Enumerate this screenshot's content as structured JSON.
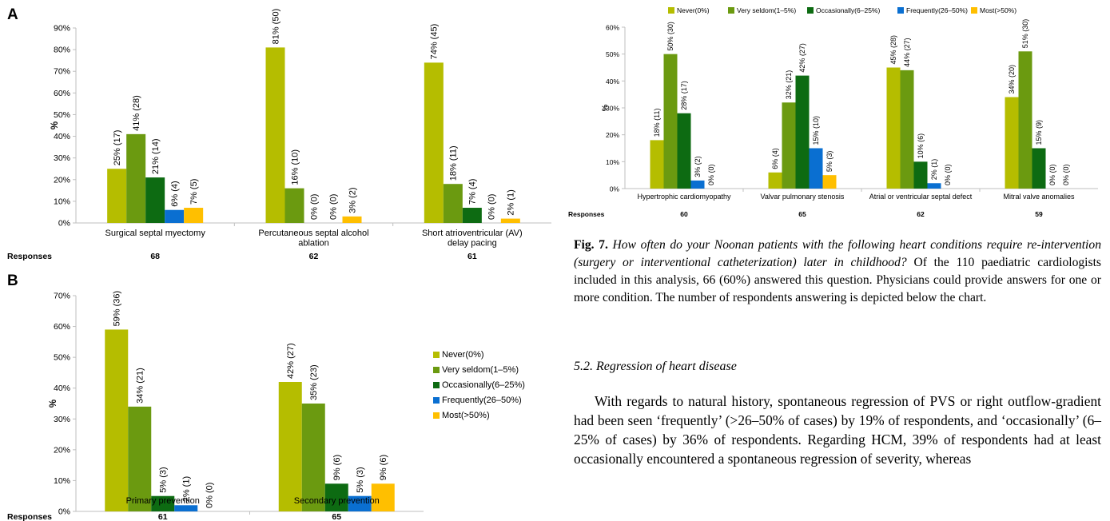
{
  "colors": {
    "never": "#b5bd00",
    "very_seldom": "#6b9a10",
    "occasionally": "#0d6b12",
    "frequently": "#0a6fd1",
    "most": "#ffbf00",
    "axis": "#bfbfbf",
    "text": "#000000"
  },
  "chart_data": [
    {
      "panel": "A",
      "type": "bar",
      "ylabel": "%",
      "ylim": [
        0,
        90
      ],
      "yticks": [
        "0%",
        "10%",
        "20%",
        "30%",
        "40%",
        "50%",
        "60%",
        "70%",
        "80%",
        "90%"
      ],
      "categories": [
        "Surgical septal myectomy",
        "Percutaneous septal alcohol ablation",
        "Short atrioventricular (AV) delay pacing"
      ],
      "responses_label": "Responses",
      "responses": [
        "68",
        "62",
        "61"
      ],
      "series": [
        {
          "name": "Never(0%)",
          "values": [
            25,
            81,
            74
          ],
          "labels": [
            "25% (17)",
            "81% (50)",
            "74% (45)"
          ]
        },
        {
          "name": "Very seldom(1–5%)",
          "values": [
            41,
            16,
            18
          ],
          "labels": [
            "41% (28)",
            "16% (10)",
            "18% (11)"
          ]
        },
        {
          "name": "Occasionally(6–25%)",
          "values": [
            21,
            0,
            7
          ],
          "labels": [
            "21% (14)",
            "0% (0)",
            "7% (4)"
          ]
        },
        {
          "name": "Frequently(26–50%)",
          "values": [
            6,
            0,
            0
          ],
          "labels": [
            "6% (4)",
            "0% (0)",
            "0% (0)"
          ]
        },
        {
          "name": "Most(>50%)",
          "values": [
            7,
            3,
            2
          ],
          "labels": [
            "7% (5)",
            "3% (2)",
            "2% (1)"
          ]
        }
      ]
    },
    {
      "panel": "B",
      "type": "bar",
      "ylabel": "%",
      "ylim": [
        0,
        70
      ],
      "yticks": [
        "0%",
        "10%",
        "20%",
        "30%",
        "40%",
        "50%",
        "60%",
        "70%"
      ],
      "categories": [
        "Primary prevention",
        "Secondary prevention"
      ],
      "responses_label": "Responses",
      "responses": [
        "61",
        "65"
      ],
      "legend": [
        "Never(0%)",
        "Very seldom(1–5%)",
        "Occasionally(6–25%)",
        "Frequently(26–50%)",
        "Most(>50%)"
      ],
      "series": [
        {
          "name": "Never(0%)",
          "values": [
            59,
            42
          ],
          "labels": [
            "59% (36)",
            "42% (27)"
          ]
        },
        {
          "name": "Very seldom(1–5%)",
          "values": [
            34,
            35
          ],
          "labels": [
            "34% (21)",
            "35% (23)"
          ]
        },
        {
          "name": "Occasionally(6–25%)",
          "values": [
            5,
            9
          ],
          "labels": [
            "5% (3)",
            "9% (6)"
          ]
        },
        {
          "name": "Frequently(26–50%)",
          "values": [
            2,
            5
          ],
          "labels": [
            "2% (1)",
            "5% (3)"
          ]
        },
        {
          "name": "Most(>50%)",
          "values": [
            0,
            9
          ],
          "labels": [
            "0% (0)",
            "9% (6)"
          ]
        }
      ]
    },
    {
      "panel": "Fig 7",
      "type": "bar",
      "ylabel": "%",
      "ylim": [
        0,
        60
      ],
      "yticks": [
        "0%",
        "10%",
        "20%",
        "30%",
        "40%",
        "50%",
        "60%"
      ],
      "legend": [
        "Never(0%)",
        "Very seldom(1–5%)",
        "Occasionally(6–25%)",
        "Frequently(26–50%)",
        "Most(>50%)"
      ],
      "categories": [
        "Hypertrophic cardiomyopathy",
        "Valvar pulmonary stenosis",
        "Atrial or ventricular septal defect",
        "Mitral valve anomalies"
      ],
      "responses_label": "Responses",
      "responses": [
        "60",
        "65",
        "62",
        "59"
      ],
      "series": [
        {
          "name": "Never(0%)",
          "values": [
            18,
            6,
            45,
            34
          ],
          "labels": [
            "18% (11)",
            "6% (4)",
            "45% (28)",
            "34% (20)"
          ]
        },
        {
          "name": "Very seldom(1–5%)",
          "values": [
            50,
            32,
            44,
            51
          ],
          "labels": [
            "50% (30)",
            "32% (21)",
            "44% (27)",
            "51% (30)"
          ]
        },
        {
          "name": "Occasionally(6–25%)",
          "values": [
            28,
            42,
            10,
            15
          ],
          "labels": [
            "28% (17)",
            "42% (27)",
            "10% (6)",
            "15% (9)"
          ]
        },
        {
          "name": "Frequently(26–50%)",
          "values": [
            3,
            15,
            2,
            0
          ],
          "labels": [
            "3% (2)",
            "15% (10)",
            "2% (1)",
            "0% (0)"
          ]
        },
        {
          "name": "Most(>50%)",
          "values": [
            0,
            5,
            0,
            0
          ],
          "labels": [
            "0% (0)",
            "5% (3)",
            "0% (0)",
            "0% (0)"
          ]
        }
      ]
    }
  ],
  "caption": {
    "fig_label": "Fig. 7.",
    "question": "How often do your Noonan patients with the following heart conditions require re-intervention (surgery or interventional catheterization) later in childhood?",
    "text": "Of the 110 paediatric cardiologists included in this analysis, 66 (60%) answered this question. Physicians could provide answers for one or more condition. The number of respondents answering is depicted below the chart."
  },
  "section": {
    "heading": "5.2.  Regression of heart disease",
    "body": "With regards to natural history, spontaneous regression of PVS or right outflow-gradient had been seen ‘frequently’ (>26–50% of cases) by 19% of respondents, and ‘occasionally’ (6–25% of cases) by 36% of respondents. Regarding HCM, 39% of respondents had at least occasionally encountered a spontaneous regression of severity, whereas"
  }
}
